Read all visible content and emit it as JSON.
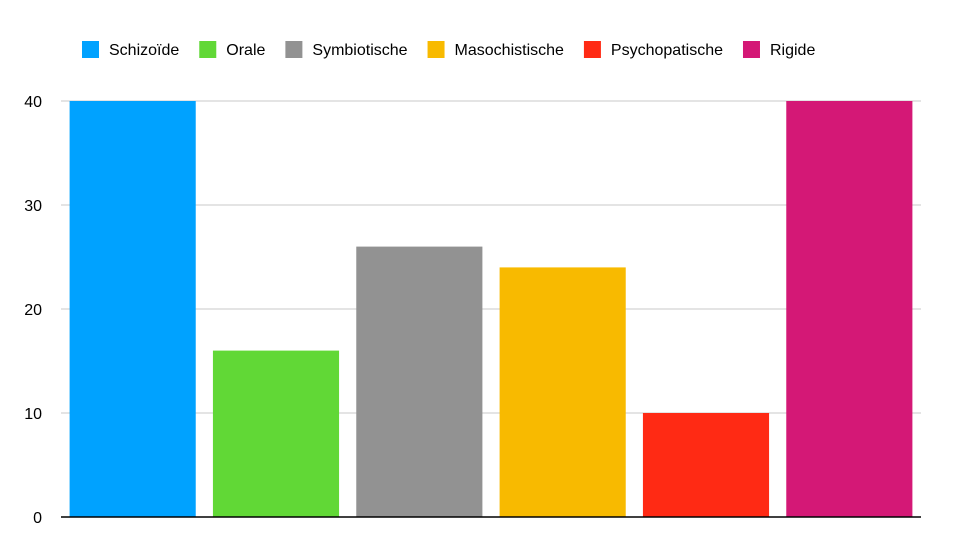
{
  "chart_data": {
    "type": "bar",
    "categories": [
      "Schizoïde",
      "Orale",
      "Symbiotische",
      "Masochistische",
      "Psychopatische",
      "Rigide"
    ],
    "values": [
      40,
      16,
      26,
      24,
      10,
      40
    ],
    "colors": [
      "#00a2ff",
      "#61d836",
      "#929292",
      "#f8ba00",
      "#ff2a14",
      "#d41876"
    ],
    "title": "",
    "xlabel": "",
    "ylabel": "",
    "ylim": [
      0,
      40
    ],
    "yticks": [
      0,
      10,
      20,
      30,
      40
    ],
    "grid": true,
    "legend_position": "top"
  }
}
